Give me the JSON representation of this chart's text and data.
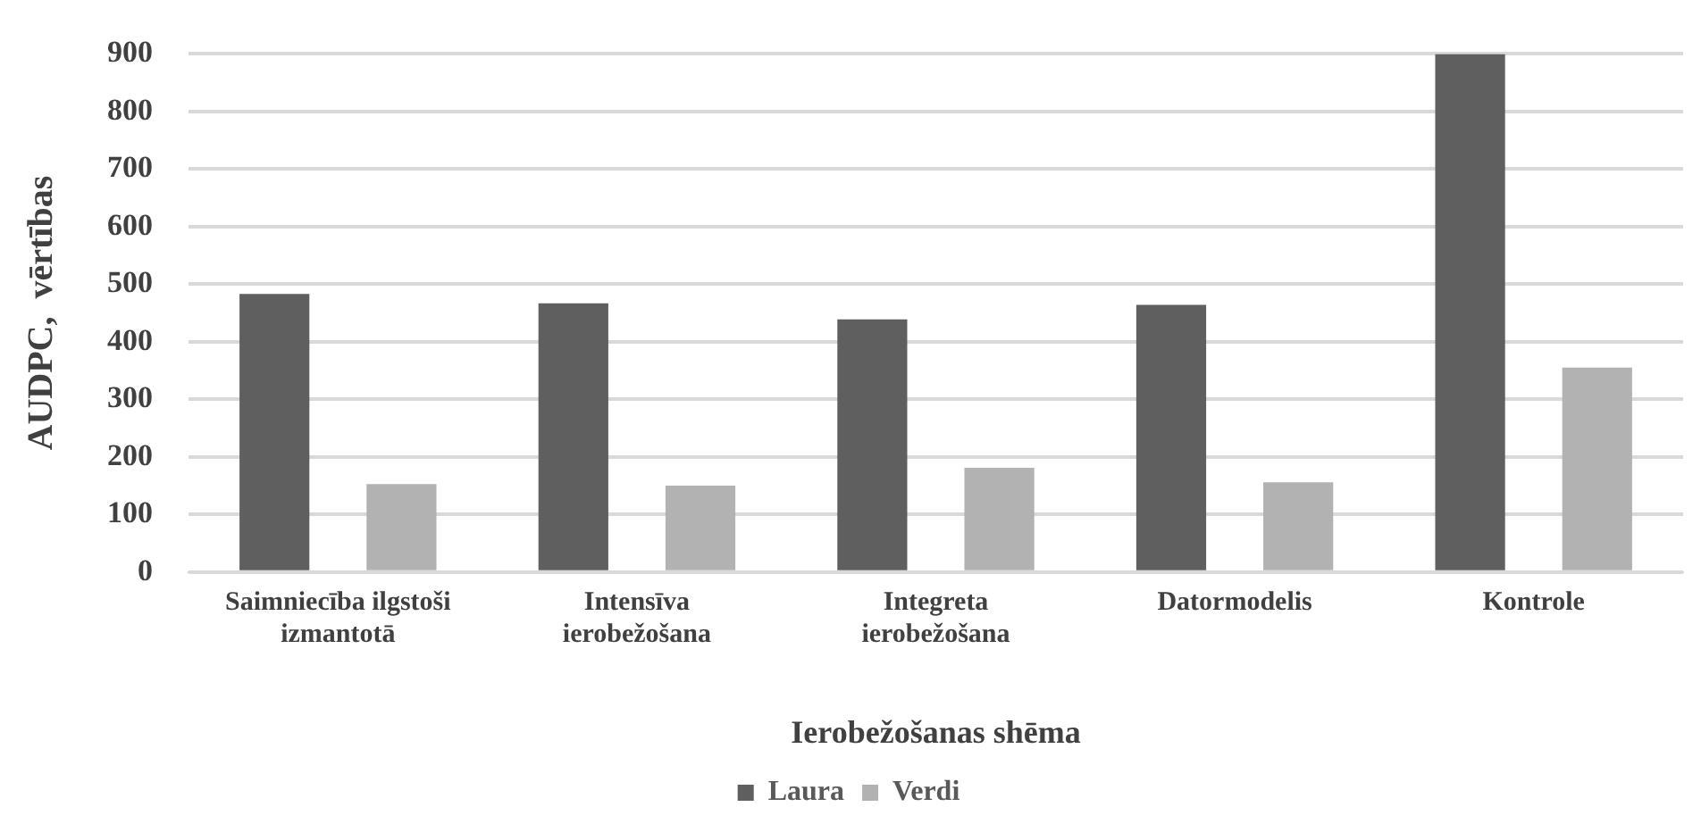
{
  "chart_data": {
    "type": "bar",
    "xlabel": "Ierobežošanas shēma",
    "ylabel": "AUDPC,  vērtības",
    "categories": [
      "Saimniecība ilgstoši izmantotā",
      "Intensīva ierobežošana",
      "Integreta ierobežošana",
      "Datormodelis",
      "Kontrole"
    ],
    "series": [
      {
        "name": "Laura",
        "color": "#5f5f5f",
        "values": [
          483,
          467,
          439,
          464,
          900
        ]
      },
      {
        "name": "Verdi",
        "color": "#b2b2b2",
        "values": [
          153,
          150,
          181,
          156,
          355
        ]
      }
    ],
    "ylim": [
      0,
      900
    ],
    "yticks": [
      0,
      100,
      200,
      300,
      400,
      500,
      600,
      700,
      800,
      900
    ],
    "grid": "y",
    "legend": "bottom"
  }
}
